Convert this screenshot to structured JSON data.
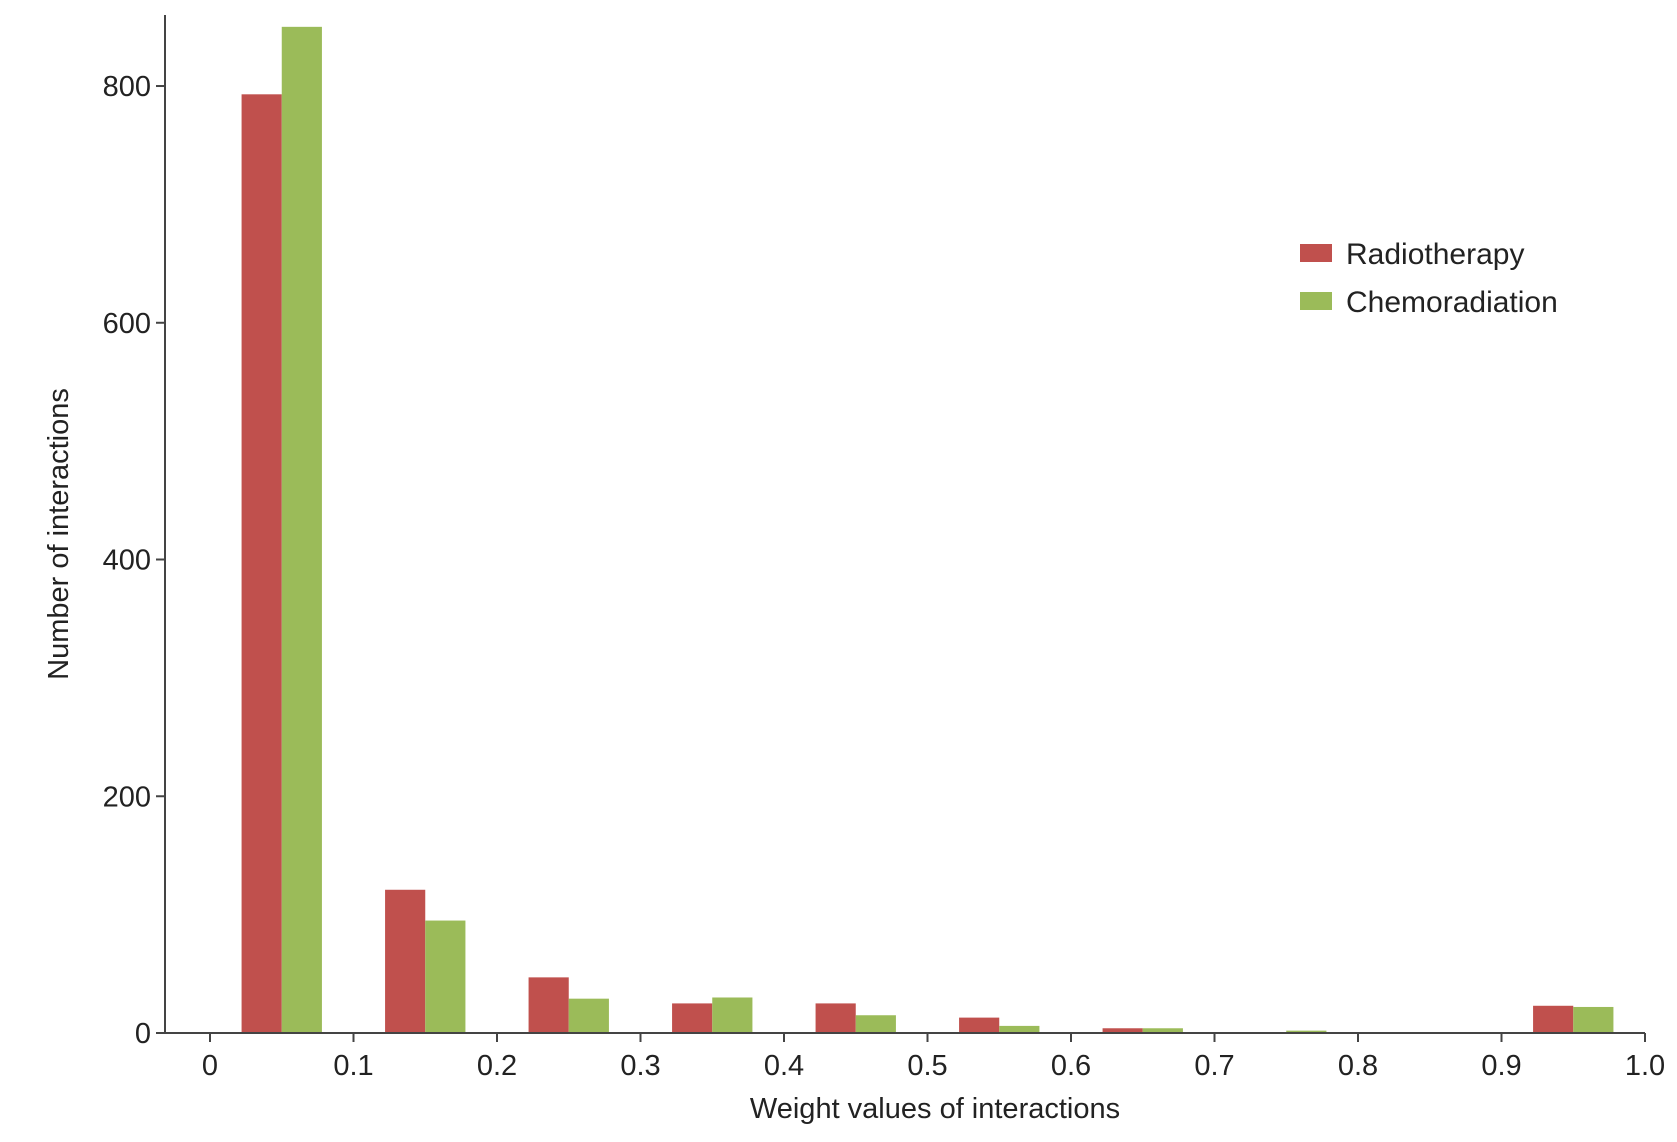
{
  "chart_data": {
    "type": "bar",
    "title": "",
    "xlabel": "Weight values of interactions",
    "ylabel": "Number of interactions",
    "x_range": [
      -0.03,
      1.0
    ],
    "xticks": [
      "0",
      "0.1",
      "0.2",
      "0.3",
      "0.4",
      "0.5",
      "0.6",
      "0.7",
      "0.8",
      "0.9",
      "1.0"
    ],
    "ylim": [
      0,
      860
    ],
    "yticks": [
      "0",
      "200",
      "400",
      "600",
      "800"
    ],
    "grid": false,
    "legend_position": "right",
    "bins": [
      0.05,
      0.15,
      0.25,
      0.35,
      0.45,
      0.55,
      0.65,
      0.75,
      0.85,
      0.95
    ],
    "bin_width": 0.1,
    "series": [
      {
        "name": "Radiotherapy",
        "color": "#c0504d",
        "values": [
          793,
          121,
          47,
          25,
          25,
          13,
          4,
          0,
          0,
          23
        ]
      },
      {
        "name": "Chemoradiation",
        "color": "#9bbb59",
        "values": [
          850,
          95,
          29,
          30,
          15,
          6,
          4,
          2,
          0,
          22
        ]
      }
    ]
  }
}
